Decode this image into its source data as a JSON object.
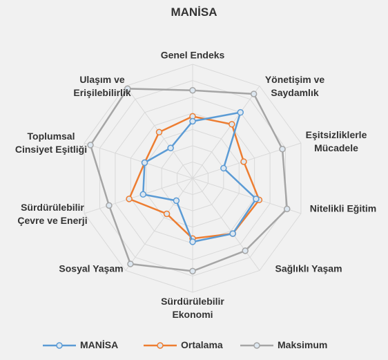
{
  "chart_data": {
    "type": "radar",
    "title": "MANİSA",
    "categories": [
      "Genel Endeks",
      "Yönetişim ve Saydamlık",
      "Eşitsizliklerle Mücadele",
      "Nitelikli Eğitim",
      "Sağlıklı Yaşam",
      "Sürdürülebilir Ekonomi",
      "Sosyal Yaşam",
      "Sürdürülebilir Çevre ve Enerji",
      "Toplumsal Cinsiyet Eşitliği",
      "Ulaşım ve Erişilebilirlik"
    ],
    "series": [
      {
        "name": "MANİSA",
        "color": "#5b9bd5",
        "values": [
          35,
          50,
          20,
          41,
          42,
          39,
          17,
          32,
          31,
          23
        ]
      },
      {
        "name": "Ortalama",
        "color": "#ed7d31",
        "values": [
          38,
          41,
          33,
          43,
          42,
          37,
          27,
          41,
          31,
          35
        ]
      },
      {
        "name": "Maksimum",
        "color": "#a5a5a5",
        "values": [
          54,
          64,
          58,
          61,
          55,
          57,
          65,
          54,
          66,
          68
        ]
      }
    ],
    "rlim": [
      0,
      70
    ],
    "rticks": [
      0,
      10,
      20,
      30,
      40,
      50,
      60,
      70
    ],
    "grid": true,
    "legend": "bottom"
  }
}
